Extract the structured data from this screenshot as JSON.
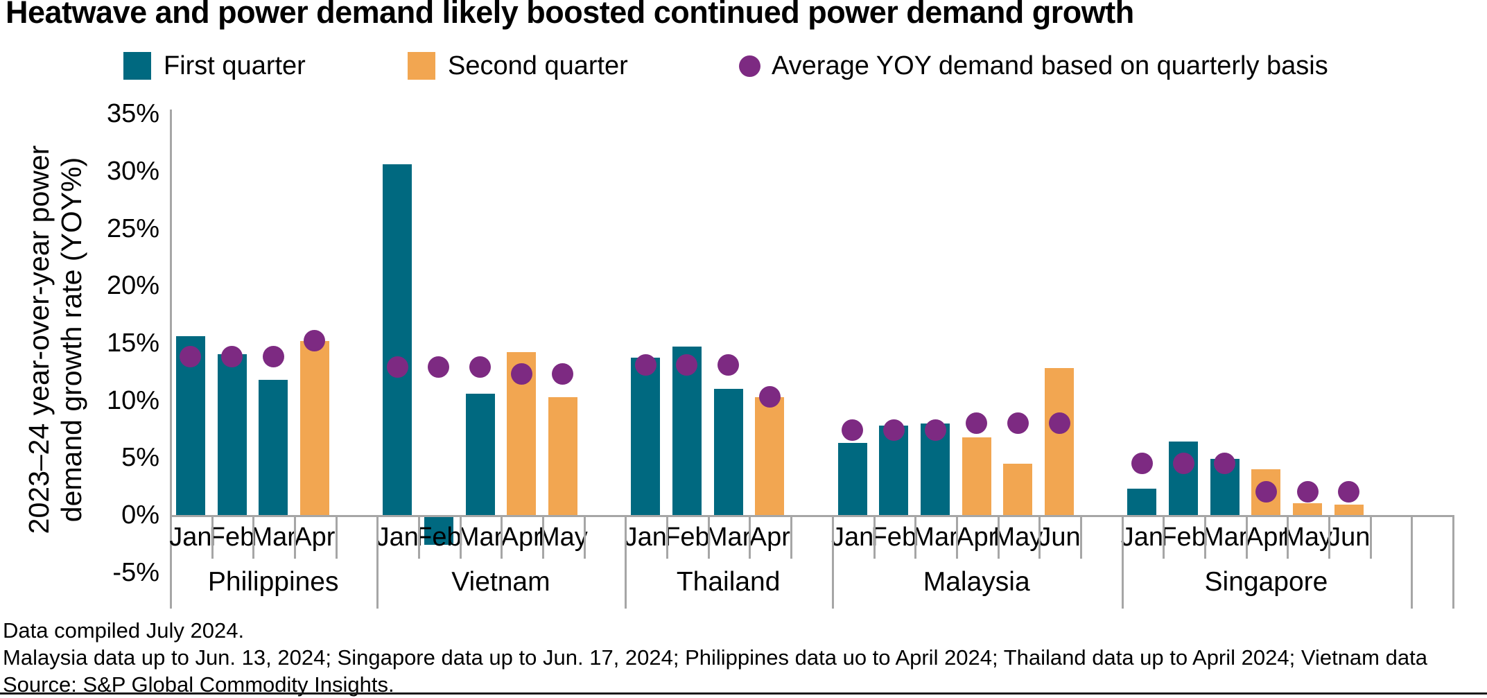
{
  "header": {
    "title": "Heatwave and power demand likely boosted continued power demand growth"
  },
  "legend": [
    {
      "label": "First quarter",
      "color": "#006980",
      "shape": "square"
    },
    {
      "label": "Second quarter",
      "color": "#F2A651",
      "shape": "square"
    },
    {
      "label": "Average YOY demand based on quarterly basis",
      "color": "#7D2A82",
      "shape": "circle"
    }
  ],
  "y_axis": {
    "label_line1": "2023–24 year-over-year power",
    "label_line2": "demand growth rate (YOY%)",
    "ticks": [
      "35%",
      "30%",
      "25%",
      "20%",
      "15%",
      "10%",
      "5%",
      "0%",
      "-5%"
    ],
    "tick_values": [
      35,
      30,
      25,
      20,
      15,
      10,
      5,
      0,
      -5
    ]
  },
  "footer": {
    "line1": "Data compiled July 2024.",
    "line2": "Malaysia data up to Jun. 13, 2024; Singapore data up to Jun. 17, 2024; Philippines data uo to April 2024; Thailand data up to April 2024; Vietnam data",
    "line3": "Source: S&P Global Commodity Insights."
  },
  "chart_data": {
    "type": "bar",
    "title": "Heatwave and power demand likely boosted continued power demand growth",
    "ylabel": "2023–24 year-over-year power demand growth rate (YOY%)",
    "unit": "%",
    "ylim": [
      -5,
      35
    ],
    "grid": false,
    "legend_position": "top",
    "colors": {
      "q1": "#006980",
      "q2": "#F2A651",
      "avg": "#7D2A82",
      "axis": "#a6a6a6"
    },
    "groups": [
      {
        "country": "Philippines",
        "months": [
          "Jan",
          "Feb",
          "Mar",
          "Apr"
        ],
        "quarters": [
          "Q1",
          "Q1",
          "Q1",
          "Q2"
        ],
        "values": [
          15.6,
          14.0,
          11.8,
          15.2
        ],
        "q1_avg": 13.8,
        "q2_avg": 15.2
      },
      {
        "country": "Vietnam",
        "months": [
          "Jan",
          "Feb",
          "Mar",
          "Apr",
          "May"
        ],
        "quarters": [
          "Q1",
          "Q1",
          "Q1",
          "Q2",
          "Q2"
        ],
        "values": [
          30.6,
          -2.5,
          10.6,
          14.2,
          10.3
        ],
        "q1_avg": 12.9,
        "q2_avg": 12.3
      },
      {
        "country": "Thailand",
        "months": [
          "Jan",
          "Feb",
          "Mar",
          "Apr"
        ],
        "quarters": [
          "Q1",
          "Q1",
          "Q1",
          "Q2"
        ],
        "values": [
          13.7,
          14.7,
          11.0,
          10.3
        ],
        "q1_avg": 13.1,
        "q2_avg": 10.3
      },
      {
        "country": "Malaysia",
        "months": [
          "Jan",
          "Feb",
          "Mar",
          "Apr",
          "May",
          "Jun"
        ],
        "quarters": [
          "Q1",
          "Q1",
          "Q1",
          "Q2",
          "Q2",
          "Q2"
        ],
        "values": [
          6.3,
          7.8,
          8.0,
          6.8,
          4.5,
          12.8
        ],
        "q1_avg": 7.4,
        "q2_avg": 8.0
      },
      {
        "country": "Singapore",
        "months": [
          "Jan",
          "Feb",
          "Mar",
          "Apr",
          "May",
          "Jun"
        ],
        "quarters": [
          "Q1",
          "Q1",
          "Q1",
          "Q2",
          "Q2",
          "Q2"
        ],
        "values": [
          2.3,
          6.4,
          4.9,
          4.0,
          1.0,
          0.9
        ],
        "q1_avg": 4.5,
        "q2_avg": 2.0
      }
    ]
  }
}
